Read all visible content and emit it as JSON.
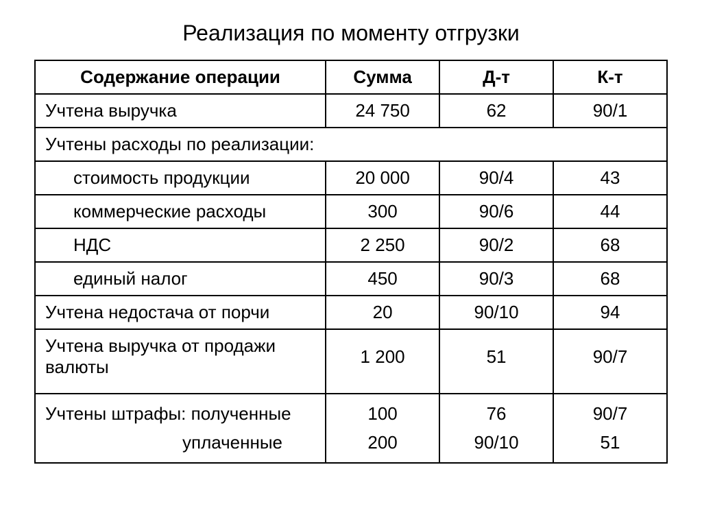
{
  "title": "Реализация по моменту отгрузки",
  "columns": [
    "Содержание операции",
    "Сумма",
    "Д-т",
    "К-т"
  ],
  "rows": [
    {
      "op": "Учтена выручка",
      "sum": "24 750",
      "dt": "62",
      "kt": "90/1",
      "indent": false
    },
    {
      "op": "Учтены расходы по реализации:",
      "span": true
    },
    {
      "op": "стоимость продукции",
      "sum": "20 000",
      "dt": "90/4",
      "kt": "43",
      "indent": true
    },
    {
      "op": "коммерческие расходы",
      "sum": "300",
      "dt": "90/6",
      "kt": "44",
      "indent": true
    },
    {
      "op": "НДС",
      "sum": "2 250",
      "dt": "90/2",
      "kt": "68",
      "indent": true
    },
    {
      "op": "единый налог",
      "sum": "450",
      "dt": "90/3",
      "kt": "68",
      "indent": true
    },
    {
      "op": "Учтена недостача от порчи",
      "sum": "20",
      "dt": "90/10",
      "kt": "94",
      "indent": false
    },
    {
      "op": "Учтена выручка от продажи валюты",
      "sum": "1 200",
      "dt": "51",
      "kt": "90/7",
      "indent": false,
      "tall": true
    }
  ],
  "penalty": {
    "op_line1": "Учтены штрафы: полученные",
    "op_line2": "уплаченные",
    "sum1": "100",
    "sum2": "200",
    "dt1": "76",
    "dt2": "90/10",
    "kt1": "90/7",
    "kt2": "51"
  },
  "styling": {
    "background_color": "#ffffff",
    "border_color": "#000000",
    "text_color": "#000000",
    "title_fontsize": 32,
    "table_fontsize": 26,
    "border_width": 2,
    "col_widths": [
      "46%",
      "18%",
      "18%",
      "18%"
    ]
  }
}
